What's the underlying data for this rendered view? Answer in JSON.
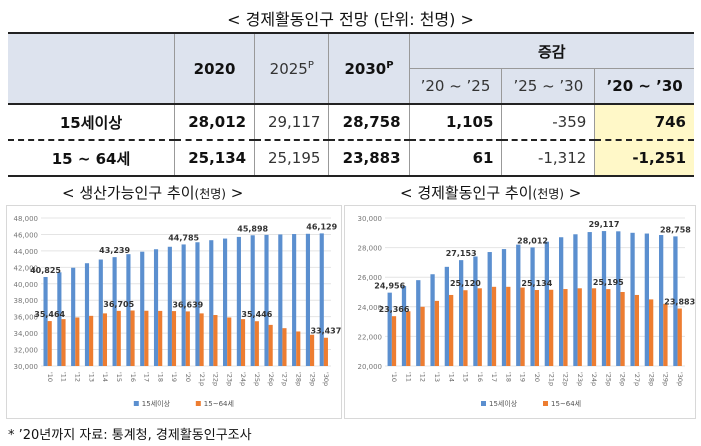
{
  "table": {
    "title": "< 경제활동인구 전망 (단위: 천명) >",
    "headers": {
      "y2020": "2020",
      "y2025": "2025",
      "y2025_sup": "P",
      "y2030": "2030",
      "y2030_sup": "P",
      "change": "증감",
      "c1": "’20 ~ ’25",
      "c2": "’25 ~ ’30",
      "c3": "’20 ~ ’30"
    },
    "rows": [
      {
        "label": "15세이상",
        "v2020": "28,012",
        "v2025": "29,117",
        "v2030": "28,758",
        "c1": "1,105",
        "c2": "-359",
        "c3": "746"
      },
      {
        "label": "15 ~ 64세",
        "v2020": "25,134",
        "v2025": "25,195",
        "v2030": "23,883",
        "c1": "61",
        "c2": "-1,312",
        "c3": "-1,251"
      }
    ]
  },
  "note": "* ’20년까지 자료: 통계청, 경제활동인구조사",
  "chart_data": [
    {
      "type": "bar",
      "title": "< 생산가능인구 추이",
      "title_unit": "(천명)",
      "title_end": " >",
      "categories": [
        "'10",
        "'11",
        "'12",
        "'13",
        "'14",
        "'15",
        "'16",
        "'17",
        "'18",
        "'19",
        "'20",
        "'21p",
        "'22p",
        "'23p",
        "'24p",
        "'25p",
        "'26p",
        "'27p",
        "'28p",
        "'29p",
        "'30p"
      ],
      "series": [
        {
          "name": "15세이상",
          "color": "#5b8fcf",
          "values": [
            40825,
            41400,
            41950,
            42500,
            42950,
            43239,
            43600,
            43900,
            44200,
            44500,
            44785,
            45050,
            45300,
            45500,
            45700,
            45898,
            45950,
            46000,
            46050,
            46080,
            46129
          ]
        },
        {
          "name": "15~64세",
          "color": "#ed7d31",
          "values": [
            35464,
            35700,
            35900,
            36100,
            36400,
            36705,
            36750,
            36720,
            36700,
            36680,
            36639,
            36400,
            36200,
            35900,
            35700,
            35446,
            35000,
            34600,
            34200,
            33800,
            33437
          ]
        }
      ],
      "data_labels": [
        {
          "series": 0,
          "index": 0,
          "text": "40,825"
        },
        {
          "series": 0,
          "index": 5,
          "text": "43,239"
        },
        {
          "series": 0,
          "index": 10,
          "text": "44,785"
        },
        {
          "series": 0,
          "index": 15,
          "text": "45,898"
        },
        {
          "series": 0,
          "index": 20,
          "text": "46,129"
        },
        {
          "series": 1,
          "index": 0,
          "text": "35,464"
        },
        {
          "series": 1,
          "index": 5,
          "text": "36,705"
        },
        {
          "series": 1,
          "index": 10,
          "text": "36,639"
        },
        {
          "series": 1,
          "index": 15,
          "text": "35,446"
        },
        {
          "series": 1,
          "index": 20,
          "text": "33,437"
        }
      ],
      "ylim": [
        30000,
        48000
      ],
      "ystep": 2000,
      "y_tick_labels": [
        "30,000",
        "32,000",
        "34,000",
        "36,000",
        "38,000",
        "40,000",
        "42,000",
        "44,000",
        "46,000",
        "48,000"
      ],
      "grid": true,
      "legend": "bottom"
    },
    {
      "type": "bar",
      "title": "< 경제활동인구 추이",
      "title_unit": "(천명)",
      "title_end": " >",
      "categories": [
        "'10",
        "'11",
        "'12",
        "'13",
        "'14",
        "'15",
        "'16",
        "'17",
        "'18",
        "'19",
        "'20",
        "'21p",
        "'22p",
        "'23p",
        "'24p",
        "'25p",
        "'26p",
        "'27p",
        "'28p",
        "'29p",
        "'30p"
      ],
      "series": [
        {
          "name": "15세이상",
          "color": "#5b8fcf",
          "values": [
            24956,
            25400,
            25800,
            26200,
            26700,
            27153,
            27400,
            27700,
            27900,
            28200,
            28012,
            28400,
            28700,
            28900,
            29050,
            29117,
            29100,
            29000,
            28950,
            28850,
            28758
          ]
        },
        {
          "name": "15~64세",
          "color": "#ed7d31",
          "values": [
            23366,
            23700,
            24000,
            24400,
            24800,
            25120,
            25250,
            25350,
            25350,
            25300,
            25134,
            25150,
            25200,
            25250,
            25250,
            25195,
            25000,
            24800,
            24500,
            24200,
            23883
          ]
        }
      ],
      "data_labels": [
        {
          "series": 0,
          "index": 0,
          "text": "24,956"
        },
        {
          "series": 0,
          "index": 5,
          "text": "27,153"
        },
        {
          "series": 0,
          "index": 10,
          "text": "28,012"
        },
        {
          "series": 0,
          "index": 15,
          "text": "29,117"
        },
        {
          "series": 0,
          "index": 20,
          "text": "28,758"
        },
        {
          "series": 1,
          "index": 0,
          "text": "23,366"
        },
        {
          "series": 1,
          "index": 5,
          "text": "25,120"
        },
        {
          "series": 1,
          "index": 10,
          "text": "25,134"
        },
        {
          "series": 1,
          "index": 15,
          "text": "25,195"
        },
        {
          "series": 1,
          "index": 20,
          "text": "23,883"
        }
      ],
      "ylim": [
        20000,
        30000
      ],
      "ystep": 2000,
      "y_tick_labels": [
        "20,000",
        "22,000",
        "24,000",
        "26,000",
        "28,000",
        "30,000"
      ],
      "grid": true,
      "legend": "bottom"
    }
  ]
}
